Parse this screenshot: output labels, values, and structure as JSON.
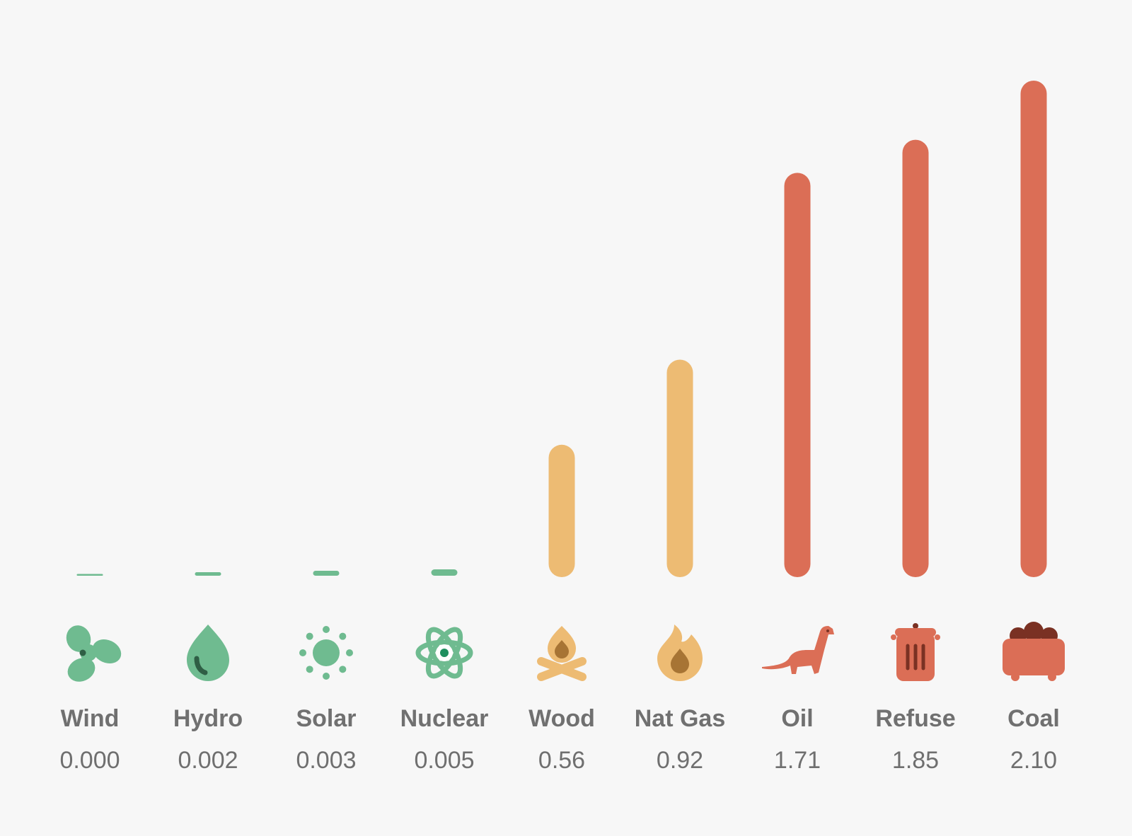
{
  "chart_data": {
    "type": "bar",
    "title": "",
    "xlabel": "",
    "ylabel": "",
    "ylim": [
      0,
      2.1
    ],
    "grid": false,
    "categories": [
      "Wind",
      "Hydro",
      "Solar",
      "Nuclear",
      "Wood",
      "Nat Gas",
      "Oil",
      "Refuse",
      "Coal"
    ],
    "values": [
      0.0,
      0.002,
      0.003,
      0.005,
      0.56,
      0.92,
      1.71,
      1.85,
      2.1
    ],
    "value_labels": [
      "0.000",
      "0.002",
      "0.003",
      "0.005",
      "0.56",
      "0.92",
      "1.71",
      "1.85",
      "2.10"
    ],
    "icons": [
      "fan-icon",
      "water-drop-icon",
      "sun-icon",
      "atom-icon",
      "campfire-icon",
      "flame-icon",
      "dinosaur-icon",
      "trash-can-icon",
      "coal-cart-icon"
    ],
    "colors": {
      "green": "#6fbb90",
      "yellow": "#edbb73",
      "red": "#db6e56",
      "dark_green": "#2f5e45",
      "dark_yellow": "#a77434",
      "dark_red": "#7a3123",
      "text": "#707070",
      "background": "#f7f7f7"
    },
    "category_colors": [
      "green",
      "green",
      "green",
      "green",
      "yellow",
      "yellow",
      "red",
      "red",
      "red"
    ]
  }
}
